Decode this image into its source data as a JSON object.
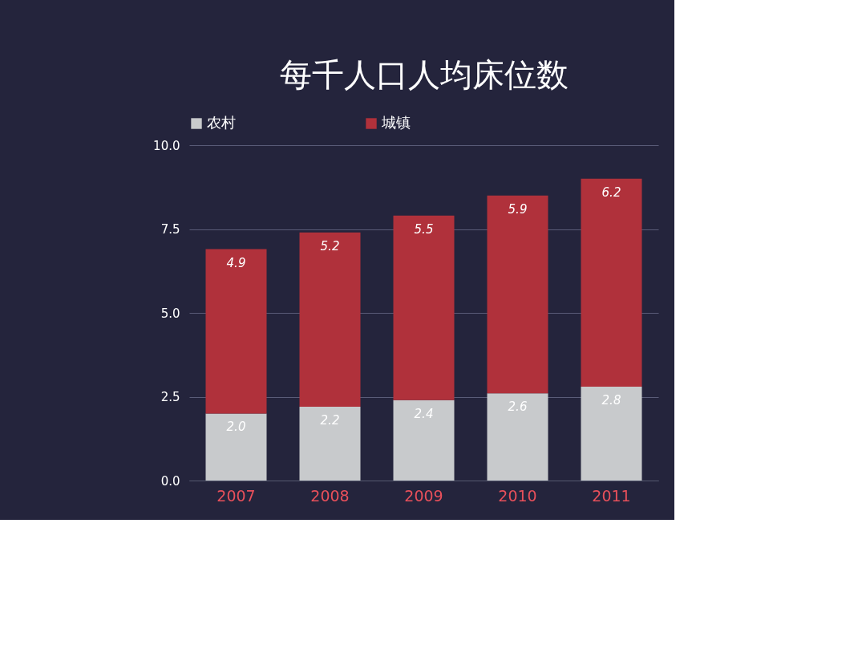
{
  "chart_data": {
    "type": "bar",
    "title": "每千人口人均床位数",
    "stacked": true,
    "categories": [
      "2007",
      "2008",
      "2009",
      "2010",
      "2011"
    ],
    "series": [
      {
        "name": "农村",
        "color": "#c8cacc",
        "values": [
          2.0,
          2.2,
          2.4,
          2.6,
          2.8
        ],
        "value_labels": [
          "2.0",
          "2.2",
          "2.4",
          "2.6",
          "2.8"
        ]
      },
      {
        "name": "城镇",
        "color": "#b0313b",
        "values": [
          4.9,
          5.2,
          5.5,
          5.9,
          6.2
        ],
        "value_labels": [
          "4.9",
          "5.2",
          "5.5",
          "5.9",
          "6.2"
        ]
      }
    ],
    "ylim": [
      0,
      10
    ],
    "yticks": [
      {
        "value": 0,
        "label": "0.0"
      },
      {
        "value": 2.5,
        "label": "2.5"
      },
      {
        "value": 5,
        "label": "5.0"
      },
      {
        "value": 7.5,
        "label": "7.5"
      },
      {
        "value": 10,
        "label": "10.0"
      }
    ],
    "grid": "y",
    "legend": "top"
  }
}
